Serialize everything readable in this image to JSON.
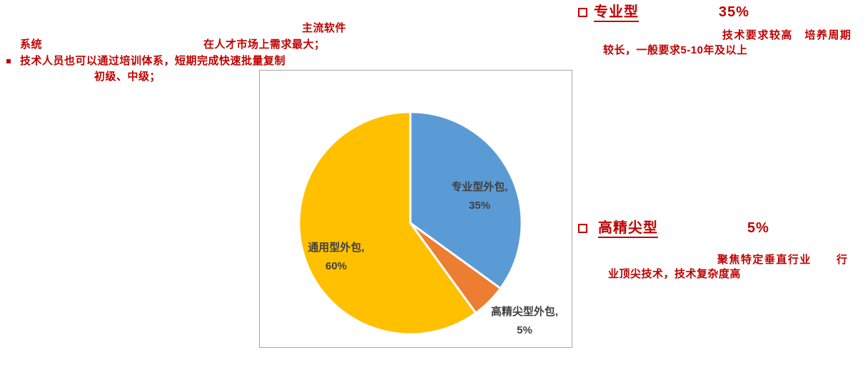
{
  "annotations": {
    "accent_color": "#C00000",
    "top_left": {
      "line1": "主流软件",
      "line2_part1": "系统",
      "line2_part2": "在人才市场上需求最大；",
      "line3": "技术人员也可以通过培训体系，短期完成快速批量复制",
      "line4": "初级、中级；"
    },
    "professional": {
      "heading": "专业型",
      "value": "35%",
      "line1": "技术要求较高　培养周期",
      "line2": "较长，一般要求5-10年及以上"
    },
    "high_end": {
      "heading": "高精尖型",
      "value": "5%",
      "line1_part1": "聚焦特定垂直行业",
      "line1_part2": "行",
      "line2": "业顶尖技术，技术复杂度高"
    }
  },
  "chart_data": {
    "type": "pie",
    "title": "",
    "start_angle_deg": 0,
    "direction": "clockwise",
    "slice_border_color": "#FFFFFF",
    "frame_color": "#A6A6A6",
    "label_color": "#404040",
    "slices": [
      {
        "slug": "professional-outsourcing",
        "name": "专业型外包",
        "value": 35,
        "color": "#5B9BD5",
        "label_line1": "专业型外包,",
        "label_line2": "35%"
      },
      {
        "slug": "high-end-outsourcing",
        "name": "高精尖型外包",
        "value": 5,
        "color": "#ED7D31",
        "label_line1": "高精尖型外包,",
        "label_line2": "5%"
      },
      {
        "slug": "general-outsourcing",
        "name": "通用型外包",
        "value": 60,
        "color": "#FFC000",
        "label_line1": "通用型外包,",
        "label_line2": "60%"
      }
    ]
  }
}
